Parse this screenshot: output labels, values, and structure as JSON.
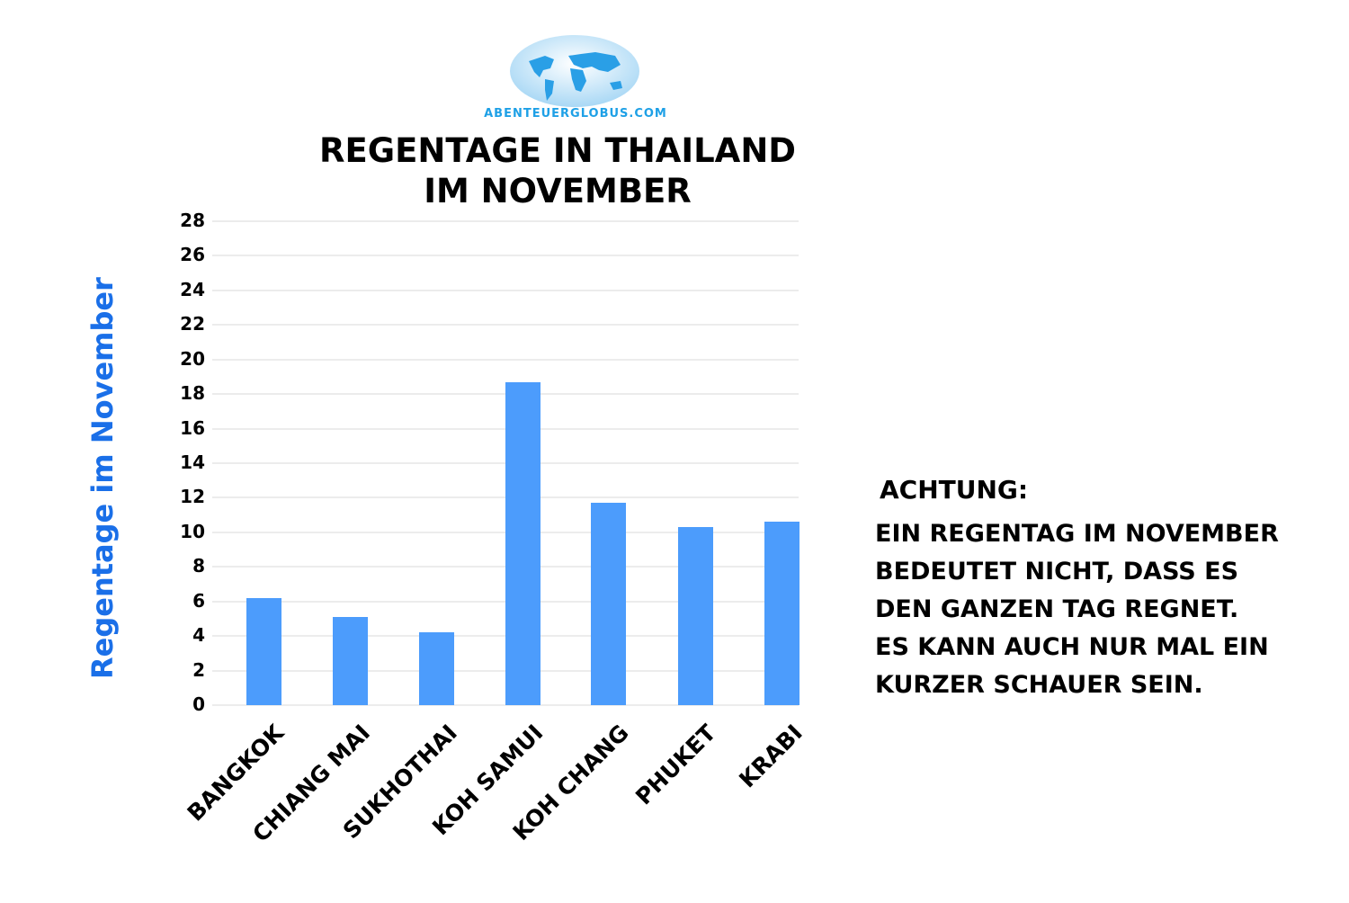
{
  "logo": {
    "text": "ABENTEUERGLOBUS.COM",
    "icon": "world-globe-icon"
  },
  "title": {
    "line1": "REGENTAGE IN THAILAND",
    "line2": "IM NOVEMBER"
  },
  "axis": {
    "ylabel": "Regentage im November",
    "yticks": [
      "0",
      "2",
      "4",
      "6",
      "8",
      "10",
      "12",
      "14",
      "16",
      "18",
      "20",
      "22",
      "24",
      "26",
      "28"
    ]
  },
  "categories": [
    "BANGKOK",
    "CHIANG MAI",
    "SUKHOTHAI",
    "KOH SAMUI",
    "KOH CHANG",
    "PHUKET",
    "KRABI"
  ],
  "note": {
    "heading": "ACHTUNG:",
    "lines": [
      "EIN REGENTAG IM NOVEMBER",
      "BEDEUTET NICHT, DASS ES",
      "DEN GANZEN TAG REGNET.",
      "ES KANN AUCH NUR MAL EIN",
      "KURZER SCHAUER SEIN."
    ]
  },
  "colors": {
    "bar": "#4c9cfc",
    "ylabel": "#1a6fe8",
    "logo": "#1ea0e6"
  },
  "chart_data": {
    "type": "bar",
    "title": "REGENTAGE IN THAILAND IM NOVEMBER",
    "xlabel": "",
    "ylabel": "Regentage im November",
    "categories": [
      "BANGKOK",
      "CHIANG MAI",
      "SUKHOTHAI",
      "KOH SAMUI",
      "KOH CHANG",
      "PHUKET",
      "KRABI"
    ],
    "values": [
      6.2,
      5.1,
      4.2,
      18.7,
      11.7,
      10.3,
      10.6
    ],
    "ylim": [
      0,
      28
    ],
    "yticks": [
      0,
      2,
      4,
      6,
      8,
      10,
      12,
      14,
      16,
      18,
      20,
      22,
      24,
      26,
      28
    ],
    "grid": true,
    "legend": null
  }
}
